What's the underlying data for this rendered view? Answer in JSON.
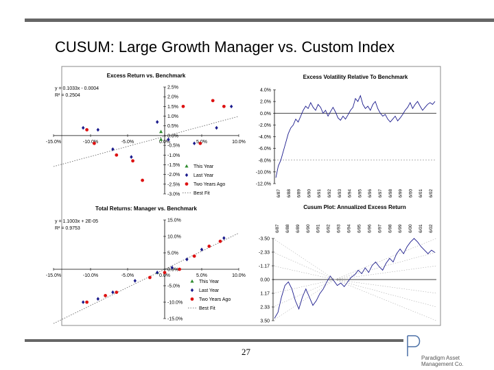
{
  "page": {
    "title": "CUSUM: Large Growth Manager vs. Custom Index",
    "page_number": "27",
    "logo": {
      "letter": "P",
      "line1": "Paradigm Asset",
      "line2": "Management Co."
    }
  },
  "chart_data": [
    {
      "type": "scatter",
      "title": "Excess Return vs. Benchmark",
      "equation": "y = 0.1033x - 0.0004",
      "r2": "R² = 0.2504",
      "xlim": [
        -15,
        10
      ],
      "ylim": [
        -3,
        2.5
      ],
      "xticks": [
        "-15.0%",
        "-10.0%",
        "-5.0%",
        "0.0%",
        "5.0%",
        "10.0%"
      ],
      "yticks": [
        "2.5%",
        "2.0%",
        "1.5%",
        "1.0%",
        "0.5%",
        "0.0%",
        "-0.5%",
        "-1.0%",
        "-1.5%",
        "-2.0%",
        "-2.5%",
        "-3.0%"
      ],
      "fit": {
        "slope": 0.1033,
        "intercept": -0.04
      },
      "series": [
        {
          "name": "This Year",
          "color": "#2e8b2e",
          "marker": "triangle",
          "x": [
            -0.5,
            -0.5
          ],
          "y": [
            0.2,
            -0.2
          ]
        },
        {
          "name": "Last Year",
          "color": "#1a1a8c",
          "marker": "diamond",
          "x": [
            -11,
            -9,
            -7,
            -4.5,
            -1,
            0.5,
            4,
            7,
            9
          ],
          "y": [
            0.4,
            0.3,
            -0.7,
            -1.1,
            0.7,
            -0.2,
            -0.4,
            0.4,
            1.5
          ]
        },
        {
          "name": "Two Years Ago",
          "color": "#d11",
          "marker": "circle",
          "x": [
            -10.5,
            -9.5,
            -6.5,
            -4.3,
            -3,
            2.5,
            4.8,
            6.5,
            8
          ],
          "y": [
            0.3,
            -0.4,
            -1.0,
            -1.3,
            -2.3,
            1.5,
            -0.4,
            1.8,
            1.5
          ]
        },
        {
          "name": "Best Fit",
          "color": "#555",
          "marker": "dotted"
        }
      ]
    },
    {
      "type": "line",
      "title": "Excess Volatility Relative To Benchmark",
      "ylim": [
        -12,
        4
      ],
      "yticks": [
        "4.0%",
        "2.0%",
        "0.0%",
        "-2.0%",
        "-4.0%",
        "-6.0%",
        "-8.0%",
        "-10.0%",
        "-12.0%"
      ],
      "xticks": [
        "6/87",
        "6/88",
        "6/89",
        "6/90",
        "6/91",
        "6/92",
        "6/93",
        "6/94",
        "6/95",
        "6/96",
        "6/97",
        "6/98",
        "6/99",
        "6/00",
        "6/01",
        "6/02"
      ],
      "threshold": -8,
      "values": [
        -11,
        -9,
        -8,
        -6.5,
        -5,
        -3.5,
        -2.5,
        -2,
        -1,
        -1.5,
        -0.5,
        0.5,
        1.2,
        0.8,
        1.8,
        1,
        0.5,
        1.5,
        1,
        0,
        0.5,
        -0.5,
        0.3,
        1,
        0.2,
        -0.8,
        -1.2,
        -0.5,
        -1,
        -0.3,
        0.5,
        1,
        2.5,
        2,
        3,
        1.5,
        0.8,
        1.2,
        0.5,
        1.5,
        2,
        0.8,
        0,
        -0.5,
        -0.2,
        -1,
        -1.5,
        -1,
        -0.5,
        -1.3,
        -0.8,
        -0.2,
        0.5,
        1,
        1.8,
        0.8,
        1.5,
        2,
        1.2,
        0.5,
        1,
        1.5,
        1.8,
        1.5,
        2
      ]
    },
    {
      "type": "scatter",
      "title": "Total Returns: Manager vs. Benchmark",
      "equation": "y = 1.1003x + 2E-05",
      "r2": "R² = 0.9753",
      "xlim": [
        -15,
        10
      ],
      "ylim": [
        -15,
        15
      ],
      "xticks": [
        "-15.0%",
        "-10.0%",
        "-5.0%",
        "0.0%",
        "5.0%",
        "10.0%"
      ],
      "yticks": [
        "15.0%",
        "10.0%",
        "5.0%",
        "0.0%",
        "-5.0%",
        "-10.0%",
        "-15.0%"
      ],
      "fit": {
        "slope": 1.1,
        "intercept": 0
      },
      "series": [
        {
          "name": "This Year",
          "color": "#2e8b2e",
          "marker": "triangle",
          "x": [
            -1
          ],
          "y": [
            -1
          ]
        },
        {
          "name": "Last Year",
          "color": "#1a1a8c",
          "marker": "diamond",
          "x": [
            -11,
            -9,
            -7,
            -4,
            -1,
            1,
            3,
            5,
            8
          ],
          "y": [
            -10,
            -9,
            -7,
            -3.5,
            -1,
            0.5,
            3,
            6,
            9.5
          ]
        },
        {
          "name": "Two Years Ago",
          "color": "#d11",
          "marker": "circle",
          "x": [
            -10.5,
            -8,
            -6.5,
            -2,
            0,
            2,
            4,
            6,
            7.5
          ],
          "y": [
            -10,
            -8,
            -7,
            -2.5,
            -1,
            0,
            4,
            7,
            8.5
          ]
        },
        {
          "name": "Best Fit",
          "color": "#555",
          "marker": "dotted"
        }
      ]
    },
    {
      "type": "line",
      "title": "Cusum Plot: Annualized Excess Return",
      "ylim_inverted": true,
      "ylim": [
        3.5,
        -3.5
      ],
      "yticks": [
        "-3.50",
        "-2.33",
        "-1.17",
        "0.00",
        "1.17",
        "2.33",
        "3.50"
      ],
      "xticks": [
        "6/87",
        "6/88",
        "6/89",
        "6/90",
        "6/91",
        "6/92",
        "6/93",
        "6/94",
        "6/95",
        "6/96",
        "6/97",
        "6/98",
        "6/99",
        "6/00",
        "6/01",
        "6/02"
      ],
      "values": [
        3.3,
        2.8,
        1.5,
        0.5,
        0.2,
        0.8,
        1.8,
        2.5,
        1.5,
        0.8,
        1.5,
        2.2,
        1.8,
        1.2,
        0.8,
        0.2,
        -0.3,
        0.1,
        0.5,
        0.3,
        0.6,
        0.2,
        -0.2,
        -0.4,
        -0.8,
        -0.5,
        -1,
        -0.6,
        -1.2,
        -1.5,
        -1.1,
        -0.8,
        -1.4,
        -1.8,
        -1.5,
        -2.2,
        -2.6,
        -2.2,
        -2.8,
        -3.2,
        -3.5,
        -3.2,
        -2.8,
        -2.5,
        -2.2,
        -2.5,
        -2.3
      ]
    }
  ]
}
